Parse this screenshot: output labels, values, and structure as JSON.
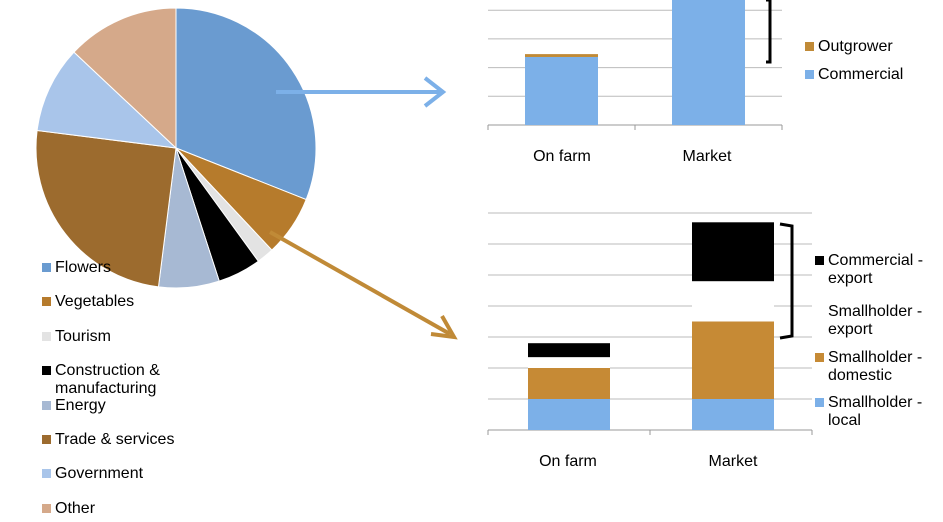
{
  "chart_data": [
    {
      "type": "pie",
      "categories": [
        "Flowers",
        "Vegetables",
        "Tourism",
        "Construction & manufacturing",
        "Energy",
        "Trade & services",
        "Government",
        "Other"
      ],
      "values": [
        31,
        7,
        2,
        5,
        7,
        25,
        10,
        13
      ],
      "colors": [
        "#6a9bd0",
        "#b67b2c",
        "#e3e3e3",
        "#000000",
        "#a7b9d3",
        "#9c6b2e",
        "#a9c5ea",
        "#d5a98a"
      ]
    },
    {
      "type": "bar",
      "stacked": true,
      "grid": true,
      "categories": [
        "On farm",
        "Market"
      ],
      "series": [
        {
          "name": "Commercial",
          "color": "#7cb0e8",
          "values": [
            2.37,
            5
          ]
        },
        {
          "name": "Outgrower",
          "color": "#c08a37",
          "values": [
            0.1,
            0
          ]
        }
      ],
      "ylim": [
        0,
        5
      ],
      "yticks": [
        0,
        1,
        2,
        3,
        4,
        5
      ]
    },
    {
      "type": "bar",
      "stacked": true,
      "grid": true,
      "categories": [
        "On farm",
        "Market"
      ],
      "series": [
        {
          "name": "Smallholder - local",
          "color": "#7cb0e8",
          "values": [
            1,
            1
          ]
        },
        {
          "name": "Smallholder - domestic",
          "color": "#c68a35",
          "values": [
            1,
            2.5
          ]
        },
        {
          "name": "Smallholder - export",
          "color": "#ffffff",
          "values": [
            0.35,
            1.3
          ]
        },
        {
          "name": "Commercial - export",
          "color": "#000000",
          "values": [
            0.45,
            1.9
          ]
        }
      ],
      "ylim": [
        0,
        7
      ],
      "yticks": [
        0,
        1,
        2,
        3,
        4,
        5,
        6,
        7
      ]
    }
  ]
}
